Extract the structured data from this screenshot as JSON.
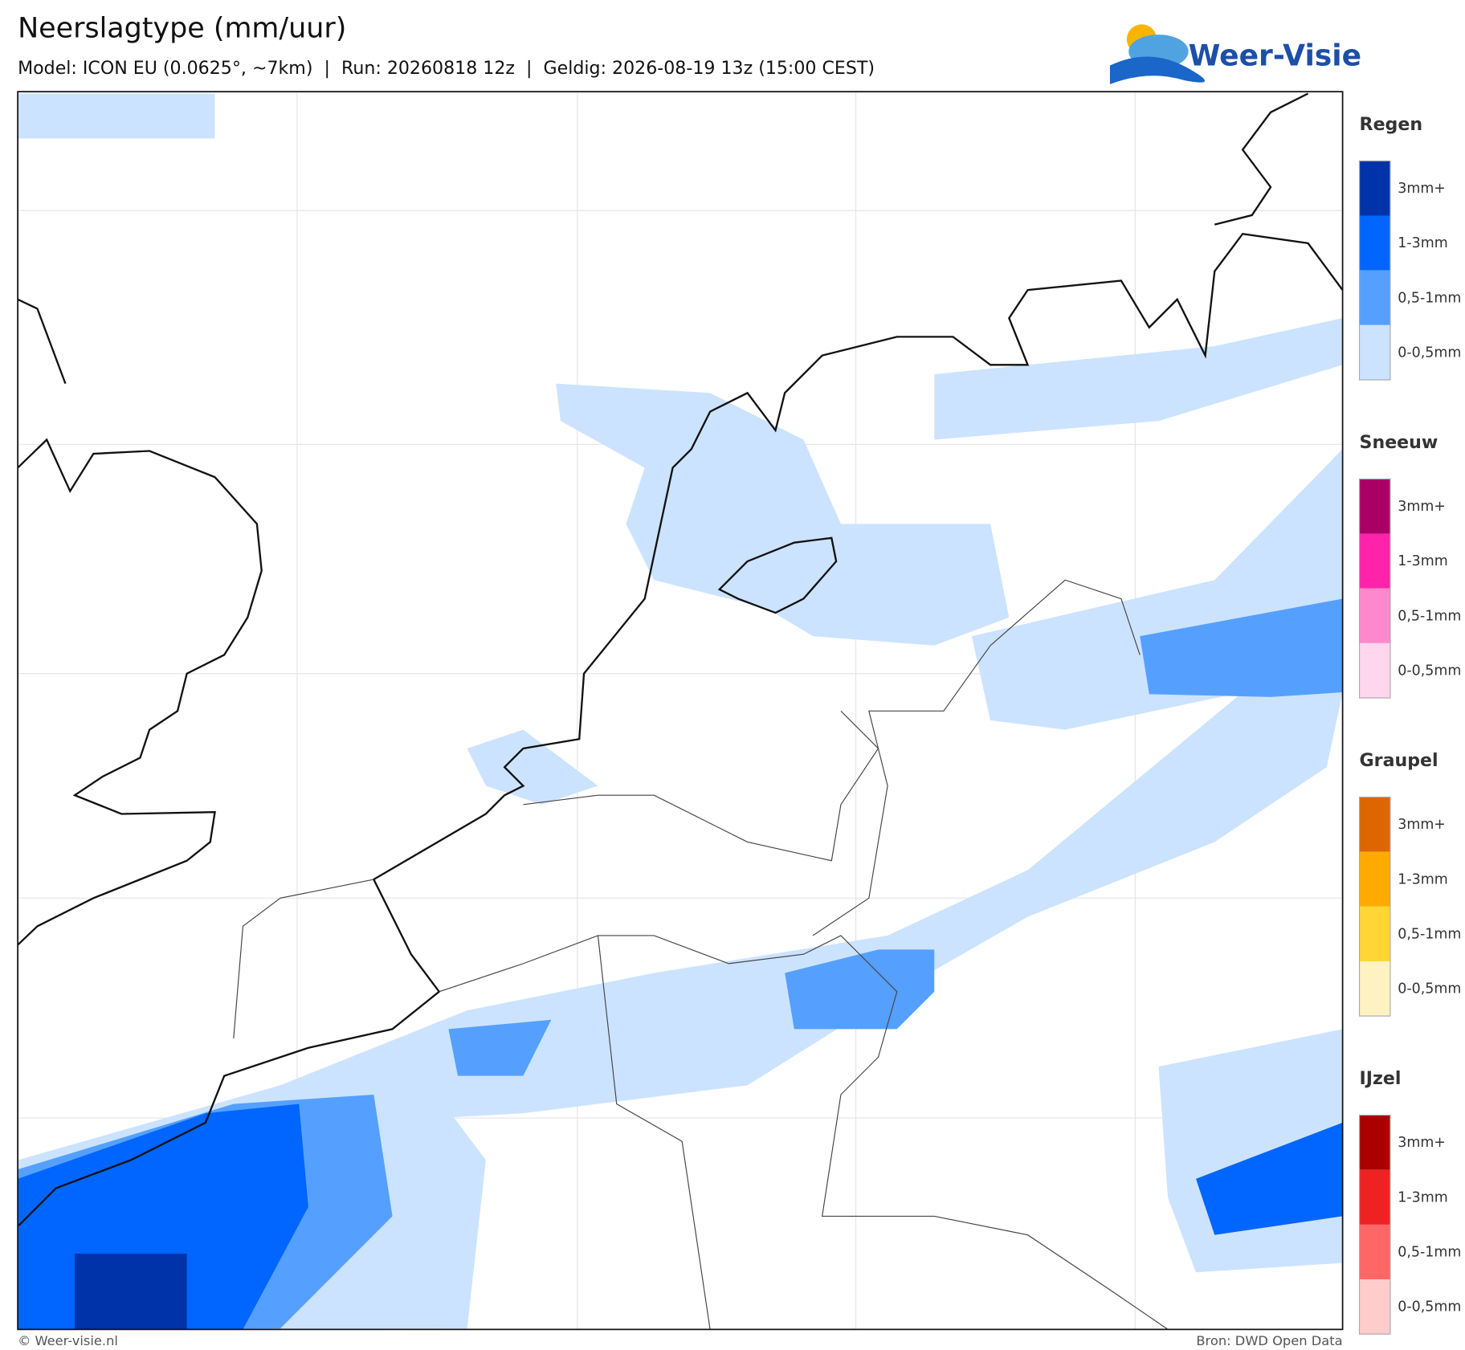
{
  "header": {
    "title": "Neerslagtype (mm/uur)",
    "subtitle": "Model: ICON EU (0.0625°, ~7km)  |  Run: 20260818 12z  |  Geldig: 2026-08-19 13z (15:00 CEST)"
  },
  "logo": {
    "text": "Weer-Visie"
  },
  "legend": [
    {
      "title": "Regen",
      "items": [
        {
          "label": "3mm+",
          "color": "#0033aa"
        },
        {
          "label": "1-3mm",
          "color": "#0066ff"
        },
        {
          "label": "0,5-1mm",
          "color": "#55a0ff"
        },
        {
          "label": "0-0,5mm",
          "color": "#cce3ff"
        }
      ]
    },
    {
      "title": "Sneeuw",
      "items": [
        {
          "label": "3mm+",
          "color": "#aa0066"
        },
        {
          "label": "1-3mm",
          "color": "#ff22aa"
        },
        {
          "label": "0,5-1mm",
          "color": "#ff88cc"
        },
        {
          "label": "0-0,5mm",
          "color": "#ffd6ee"
        }
      ]
    },
    {
      "title": "Graupel",
      "items": [
        {
          "label": "3mm+",
          "color": "#dd6600"
        },
        {
          "label": "1-3mm",
          "color": "#ffaa00"
        },
        {
          "label": "0,5-1mm",
          "color": "#ffd633"
        },
        {
          "label": "0-0,5mm",
          "color": "#fff2c2"
        }
      ]
    },
    {
      "title": "IJzel",
      "items": [
        {
          "label": "3mm+",
          "color": "#aa0000"
        },
        {
          "label": "1-3mm",
          "color": "#ee2222"
        },
        {
          "label": "0,5-1mm",
          "color": "#ff6666"
        },
        {
          "label": "0-0,5mm",
          "color": "#ffcccc"
        }
      ]
    }
  ],
  "footer": {
    "left": "© Weer-visie.nl",
    "right": "Bron: DWD Open Data"
  }
}
